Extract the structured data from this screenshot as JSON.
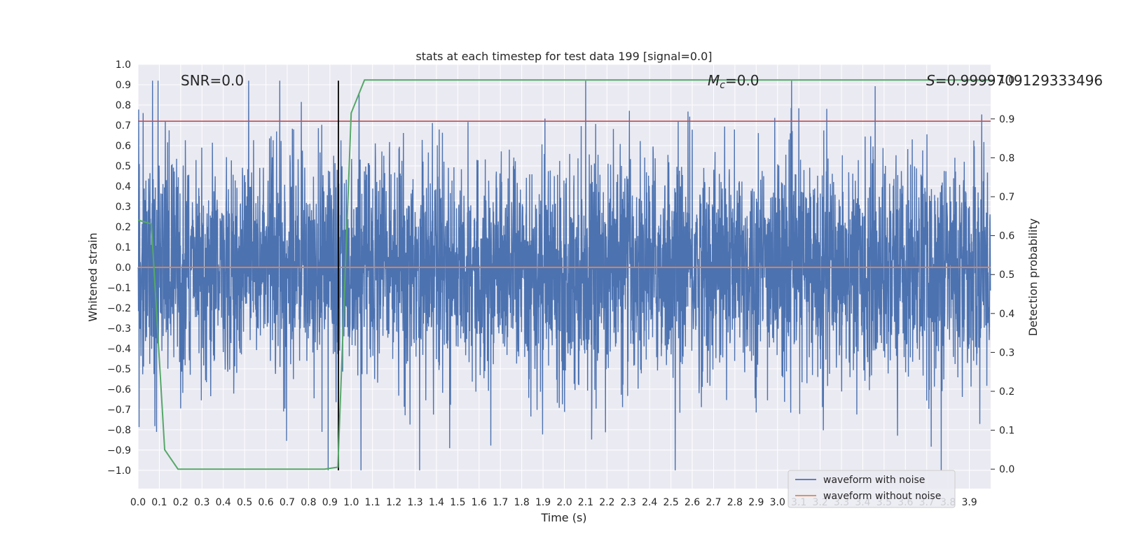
{
  "chart_data": {
    "type": "line",
    "title": "stats at each timestep for test data 199 [signal=0.0]",
    "xlabel": "Time (s)",
    "ylabel": "Whitened strain",
    "y2label": "Detection probability",
    "xlim": [
      0.0,
      4.0
    ],
    "ylim": [
      -1.09,
      1.0
    ],
    "y2lim": [
      -0.05,
      1.04
    ],
    "x_ticks": [
      "0.0",
      "0.1",
      "0.2",
      "0.3",
      "0.4",
      "0.5",
      "0.6",
      "0.7",
      "0.8",
      "0.9",
      "1.0",
      "1.1",
      "1.2",
      "1.3",
      "1.4",
      "1.5",
      "1.6",
      "1.7",
      "1.8",
      "1.9",
      "2.0",
      "2.1",
      "2.2",
      "2.3",
      "2.4",
      "2.5",
      "2.6",
      "2.7",
      "2.8",
      "2.9",
      "3.0",
      "3.1",
      "3.2",
      "3.3",
      "3.4",
      "3.5",
      "3.6",
      "3.7",
      "3.8",
      "3.9"
    ],
    "y_ticks": [
      "1.0",
      "0.9",
      "0.8",
      "0.7",
      "0.6",
      "0.5",
      "0.4",
      "0.3",
      "0.2",
      "0.1",
      "0.0",
      "−0.1",
      "−0.2",
      "−0.3",
      "−0.4",
      "−0.5",
      "−0.6",
      "−0.7",
      "−0.8",
      "−0.9",
      "−1.0"
    ],
    "y2_ticks": [
      "1.0",
      "0.9",
      "0.8",
      "0.7",
      "0.6",
      "0.5",
      "0.4",
      "0.3",
      "0.2",
      "0.1",
      "0.0"
    ],
    "grid": true,
    "legend_position": "bottom-right",
    "annotations": {
      "snr": "SNR=0.0",
      "mc_symbol": "M",
      "mc_sub": "c",
      "mc_value": "=0.0",
      "s_symbol": "S",
      "s_value": "=0.9999709129333496"
    },
    "series": [
      {
        "name": "waveform with noise",
        "color": "#4c72b0",
        "kind": "noise",
        "sample_rate": 1000,
        "std": 0.27,
        "clip": [
          -1.0,
          0.92
        ]
      },
      {
        "name": "waveform without noise",
        "color": "#dd8452",
        "values_const": 0.0
      },
      {
        "color": "#55a868",
        "axis": "right",
        "x": [
          0.0,
          0.0625,
          0.125,
          0.1875,
          0.25,
          0.3125,
          0.375,
          0.4375,
          0.5,
          0.5625,
          0.625,
          0.6875,
          0.75,
          0.8125,
          0.875,
          0.9375,
          1.0,
          1.0625,
          1.125,
          4.0
        ],
        "values": [
          0.64,
          0.63,
          0.05,
          0.0,
          0.0,
          0.0,
          0.0,
          0.0,
          0.0,
          0.0,
          0.0,
          0.0,
          0.0,
          0.0,
          0.0,
          0.005,
          0.915,
          1.0,
          1.0,
          1.0
        ]
      }
    ],
    "hlines": [
      {
        "y": 0.72,
        "axis": "left",
        "color": "#c44e52"
      }
    ],
    "vlines": [
      {
        "x": 0.94,
        "y_from": -1.0,
        "y_to": 0.92,
        "color": "#000000"
      }
    ],
    "extra_grid_left": [
      0.15,
      -0.04,
      0.33
    ]
  }
}
